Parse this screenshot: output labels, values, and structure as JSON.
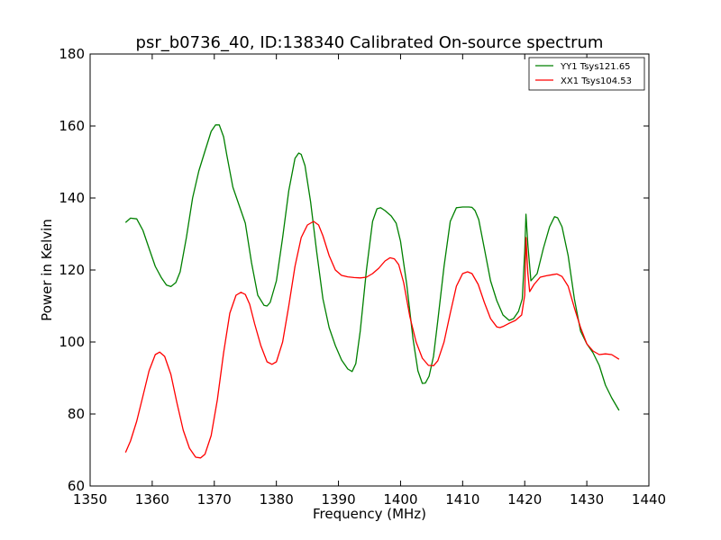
{
  "chart_data": {
    "type": "line",
    "title": "psr_b0736_40, ID:138340 Calibrated On-source spectrum",
    "xlabel": "Frequency (MHz)",
    "ylabel": "Power in Kelvin",
    "xlim": [
      1350,
      1440
    ],
    "ylim": [
      60,
      180
    ],
    "xticks": [
      1350,
      1360,
      1370,
      1380,
      1390,
      1400,
      1410,
      1420,
      1430,
      1440
    ],
    "yticks": [
      60,
      80,
      100,
      120,
      140,
      160,
      180
    ],
    "grid": false,
    "legend_position": "top-right",
    "series": [
      {
        "name": "YY1 Tsys121.65",
        "color": "#008000",
        "x": [
          1355.7,
          1356.5,
          1357.5,
          1358.5,
          1359.5,
          1360.5,
          1361.5,
          1362.3,
          1363.0,
          1363.8,
          1364.5,
          1365.5,
          1366.5,
          1367.5,
          1368.5,
          1369.5,
          1370.2,
          1370.8,
          1371.5,
          1372.0,
          1373.0,
          1374.0,
          1375.0,
          1376.0,
          1377.0,
          1378.0,
          1378.5,
          1379.0,
          1380.0,
          1381.0,
          1382.0,
          1383.0,
          1383.6,
          1384.0,
          1384.6,
          1385.5,
          1386.5,
          1387.5,
          1388.5,
          1389.5,
          1390.5,
          1391.5,
          1392.2,
          1392.8,
          1393.5,
          1394.5,
          1395.5,
          1396.2,
          1396.8,
          1397.5,
          1398.5,
          1399.3,
          1400.0,
          1401.0,
          1402.0,
          1402.8,
          1403.5,
          1404.0,
          1404.6,
          1405.3,
          1406.0,
          1407.0,
          1408.0,
          1409.0,
          1410.0,
          1411.0,
          1411.5,
          1412.0,
          1412.6,
          1413.5,
          1414.5,
          1415.5,
          1416.5,
          1417.5,
          1418.2,
          1419.0,
          1419.6,
          1420.0,
          1420.2,
          1420.5,
          1421.0,
          1422.0,
          1423.0,
          1424.0,
          1424.8,
          1425.3,
          1426.0,
          1427.0,
          1428.0,
          1429.0,
          1430.0,
          1431.0,
          1432.0,
          1433.0,
          1434.0,
          1435.2
        ],
        "y": [
          133.2,
          134.4,
          134.2,
          131.0,
          126.0,
          121.0,
          117.8,
          115.8,
          115.4,
          116.5,
          119.5,
          129.0,
          140.0,
          147.5,
          153.0,
          158.5,
          160.3,
          160.3,
          157.0,
          152.0,
          143.0,
          138.0,
          133.0,
          122.0,
          113.0,
          110.2,
          110.0,
          111.0,
          117.0,
          129.0,
          142.0,
          151.0,
          152.5,
          152.1,
          149.0,
          139.0,
          125.0,
          112.0,
          104.0,
          99.0,
          95.0,
          92.5,
          91.8,
          94.0,
          103.0,
          120.0,
          133.5,
          137.0,
          137.3,
          136.5,
          135.0,
          133.0,
          128.0,
          116.0,
          101.0,
          92.0,
          88.5,
          88.6,
          90.5,
          96.0,
          106.0,
          121.0,
          133.5,
          137.3,
          137.5,
          137.5,
          137.4,
          136.5,
          134.0,
          126.0,
          117.0,
          111.5,
          107.5,
          106.0,
          106.5,
          108.5,
          112.0,
          125.0,
          135.5,
          127.0,
          117.0,
          119.0,
          126.0,
          132.0,
          134.8,
          134.5,
          132.0,
          124.0,
          112.0,
          103.0,
          99.5,
          97.0,
          93.5,
          88.0,
          84.5,
          81.0
        ]
      },
      {
        "name": "XX1 Tsys104.53",
        "color": "#ff0000",
        "x": [
          1355.7,
          1356.5,
          1357.5,
          1358.5,
          1359.5,
          1360.5,
          1361.2,
          1362.0,
          1363.0,
          1364.0,
          1365.0,
          1366.0,
          1367.0,
          1367.8,
          1368.5,
          1369.5,
          1370.5,
          1371.5,
          1372.5,
          1373.5,
          1374.3,
          1375.0,
          1375.7,
          1376.5,
          1377.5,
          1378.5,
          1379.3,
          1380.0,
          1381.0,
          1382.0,
          1383.0,
          1384.0,
          1385.0,
          1386.0,
          1386.8,
          1387.5,
          1388.5,
          1389.5,
          1390.5,
          1391.5,
          1392.5,
          1393.5,
          1394.5,
          1395.5,
          1396.5,
          1397.5,
          1398.3,
          1399.0,
          1399.7,
          1400.5,
          1401.5,
          1402.5,
          1403.5,
          1404.5,
          1405.3,
          1406.0,
          1407.0,
          1408.0,
          1409.0,
          1410.0,
          1410.8,
          1411.5,
          1412.5,
          1413.5,
          1414.5,
          1415.5,
          1416.0,
          1416.5,
          1417.5,
          1418.5,
          1419.5,
          1420.0,
          1420.2,
          1420.5,
          1420.8,
          1421.5,
          1422.5,
          1423.5,
          1424.5,
          1425.2,
          1426.0,
          1427.0,
          1428.0,
          1429.0,
          1430.0,
          1431.0,
          1432.0,
          1433.0,
          1434.0,
          1435.2
        ],
        "y": [
          69.3,
          72.5,
          78.0,
          85.0,
          92.0,
          96.5,
          97.2,
          96.0,
          91.0,
          83.0,
          75.5,
          70.5,
          68.0,
          67.8,
          68.8,
          74.0,
          84.0,
          97.0,
          108.0,
          113.0,
          113.8,
          113.2,
          110.5,
          105.0,
          99.0,
          94.5,
          93.8,
          94.5,
          100.0,
          110.0,
          121.0,
          129.0,
          132.5,
          133.5,
          132.5,
          129.5,
          124.0,
          120.0,
          118.5,
          118.1,
          117.9,
          117.8,
          118.0,
          119.0,
          120.5,
          122.5,
          123.4,
          123.1,
          121.5,
          116.5,
          107.0,
          100.0,
          95.5,
          93.5,
          93.4,
          94.8,
          100.0,
          108.0,
          115.5,
          119.0,
          119.5,
          119.0,
          116.0,
          111.0,
          106.5,
          104.2,
          104.0,
          104.3,
          105.2,
          106.0,
          107.5,
          113.0,
          129.0,
          119.0,
          114.0,
          116.0,
          118.0,
          118.4,
          118.7,
          118.9,
          118.2,
          115.5,
          109.5,
          104.0,
          99.5,
          97.5,
          96.5,
          96.7,
          96.5,
          95.2
        ]
      }
    ]
  }
}
